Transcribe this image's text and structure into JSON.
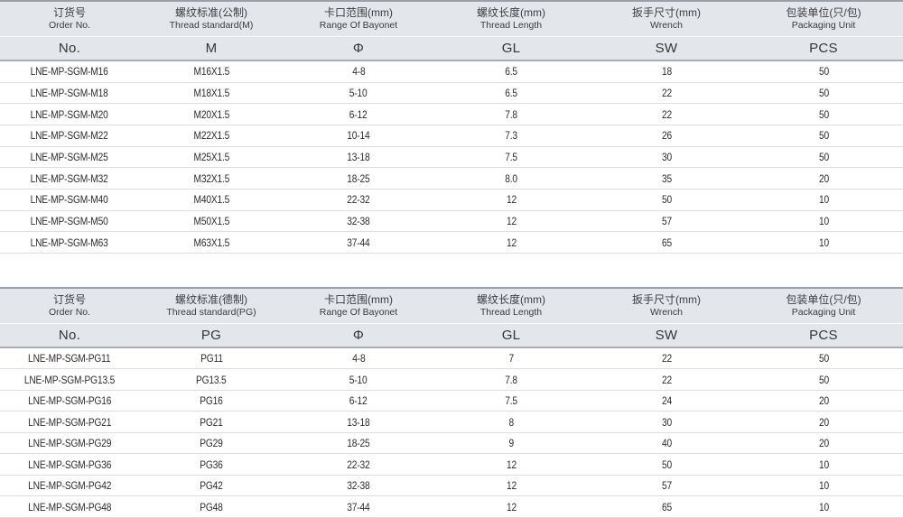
{
  "tables": [
    {
      "key": "metric",
      "name": "metric-thread-table",
      "columns": [
        {
          "zh": "订货号",
          "en": "Order No.",
          "code": "No."
        },
        {
          "zh": "螺纹标准(公制)",
          "en": "Thread standard(M)",
          "code": "M"
        },
        {
          "zh": "卡口范围(mm)",
          "en": "Range Of Bayonet",
          "code": "Φ"
        },
        {
          "zh": "螺纹长度(mm)",
          "en": "Thread Length",
          "code": "GL"
        },
        {
          "zh": "扳手尺寸(mm)",
          "en": "Wrench",
          "code": "SW"
        },
        {
          "zh": "包装单位(只/包)",
          "en": "Packaging Unit",
          "code": "PCS"
        }
      ],
      "rows": [
        [
          "LNE-MP-SGM-M16",
          "M16X1.5",
          "4-8",
          "6.5",
          "18",
          "50"
        ],
        [
          "LNE-MP-SGM-M18",
          "M18X1.5",
          "5-10",
          "6.5",
          "22",
          "50"
        ],
        [
          "LNE-MP-SGM-M20",
          "M20X1.5",
          "6-12",
          "7.8",
          "22",
          "50"
        ],
        [
          "LNE-MP-SGM-M22",
          "M22X1.5",
          "10-14",
          "7.3",
          "26",
          "50"
        ],
        [
          "LNE-MP-SGM-M25",
          "M25X1.5",
          "13-18",
          "7.5",
          "30",
          "50"
        ],
        [
          "LNE-MP-SGM-M32",
          "M32X1.5",
          "18-25",
          "8.0",
          "35",
          "20"
        ],
        [
          "LNE-MP-SGM-M40",
          "M40X1.5",
          "22-32",
          "12",
          "50",
          "10"
        ],
        [
          "LNE-MP-SGM-M50",
          "M50X1.5",
          "32-38",
          "12",
          "57",
          "10"
        ],
        [
          "LNE-MP-SGM-M63",
          "M63X1.5",
          "37-44",
          "12",
          "65",
          "10"
        ]
      ]
    },
    {
      "key": "pg",
      "name": "pg-thread-table",
      "columns": [
        {
          "zh": "订货号",
          "en": "Order No.",
          "code": "No."
        },
        {
          "zh": "螺纹标准(德制)",
          "en": "Thread standard(PG)",
          "code": "PG"
        },
        {
          "zh": "卡口范围(mm)",
          "en": "Range Of Bayonet",
          "code": "Φ"
        },
        {
          "zh": "螺纹长度(mm)",
          "en": "Thread Length",
          "code": "GL"
        },
        {
          "zh": "扳手尺寸(mm)",
          "en": "Wrench",
          "code": "SW"
        },
        {
          "zh": "包装单位(只/包)",
          "en": "Packaging Unit",
          "code": "PCS"
        }
      ],
      "rows": [
        [
          "LNE-MP-SGM-PG11",
          "PG11",
          "4-8",
          "7",
          "22",
          "50"
        ],
        [
          "LNE-MP-SGM-PG13.5",
          "PG13.5",
          "5-10",
          "7.8",
          "22",
          "50"
        ],
        [
          "LNE-MP-SGM-PG16",
          "PG16",
          "6-12",
          "7.5",
          "24",
          "20"
        ],
        [
          "LNE-MP-SGM-PG21",
          "PG21",
          "13-18",
          "8",
          "30",
          "20"
        ],
        [
          "LNE-MP-SGM-PG29",
          "PG29",
          "18-25",
          "9",
          "40",
          "20"
        ],
        [
          "LNE-MP-SGM-PG36",
          "PG36",
          "22-32",
          "12",
          "50",
          "10"
        ],
        [
          "LNE-MP-SGM-PG42",
          "PG42",
          "32-38",
          "12",
          "57",
          "10"
        ],
        [
          "LNE-MP-SGM-PG48",
          "PG48",
          "37-44",
          "12",
          "65",
          "10"
        ]
      ]
    }
  ],
  "colors": {
    "header_bg": "#e3e6ea",
    "header_top_border": "#9aa0a8",
    "header_bottom_border": "#a8adb2",
    "row_separator": "#dcdee0",
    "text": "#2c2c2c"
  }
}
